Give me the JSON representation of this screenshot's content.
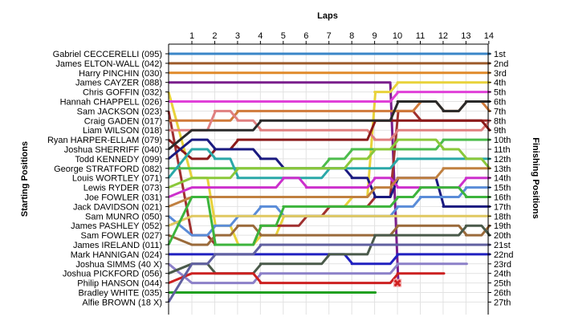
{
  "chart_data": {
    "type": "line",
    "title": "",
    "xlabel": "Laps",
    "ylabel_left": "Starting Positions",
    "ylabel_right": "Finishing Positions",
    "laps": [
      1,
      2,
      3,
      4,
      5,
      6,
      7,
      8,
      9,
      10,
      11,
      12,
      13,
      14
    ],
    "finish_labels": [
      "1st",
      "2nd",
      "3rd",
      "4th",
      "5th",
      "6th",
      "7th",
      "8th",
      "9th",
      "10th",
      "11th",
      "12th",
      "13th",
      "14th",
      "15th",
      "16th",
      "17th",
      "18th",
      "19th",
      "20th",
      "21st",
      "22nd",
      "23rd",
      "24th",
      "25th",
      "26th",
      "27th"
    ],
    "series": [
      {
        "name": "Gabriel CECCERELLI (095)",
        "color": "#3a86c8",
        "positions": [
          1,
          1,
          1,
          1,
          1,
          1,
          1,
          1,
          1,
          1,
          1,
          1,
          1,
          1
        ]
      },
      {
        "name": "James ELTON-WALL (042)",
        "color": "#9c5a2a",
        "positions": [
          2,
          2,
          2,
          2,
          2,
          2,
          2,
          2,
          2,
          2,
          2,
          2,
          2,
          2
        ]
      },
      {
        "name": "Harry PINCHIN (030)",
        "color": "#e08a2a",
        "positions": [
          3,
          3,
          3,
          3,
          3,
          3,
          3,
          3,
          3,
          3,
          3,
          3,
          3,
          3
        ]
      },
      {
        "name": "James CAYZER (088)",
        "color": "#7a1e8c",
        "positions": [
          4,
          4,
          4,
          4,
          4,
          4,
          4,
          4,
          4,
          25
        ]
      },
      {
        "name": "Chris GOFFIN (032)",
        "color": "#e8d23a",
        "positions": [
          14,
          19,
          21,
          20,
          18,
          18,
          17,
          16,
          5,
          4,
          4,
          4,
          4,
          4
        ]
      },
      {
        "name": "Hannah CHAPPELL (026)",
        "color": "#e040d8",
        "positions": [
          6,
          6,
          6,
          6,
          6,
          6,
          6,
          6,
          6,
          5,
          5,
          5,
          5,
          5
        ]
      },
      {
        "name": "Sam JACKSON (023)",
        "color": "#a03030",
        "positions": [
          20,
          21,
          21,
          19,
          19,
          18,
          17,
          17,
          16,
          7,
          8,
          8,
          8,
          8
        ]
      },
      {
        "name": "Craig GADEN (017)",
        "color": "#d07a3a",
        "positions": [
          8,
          8,
          7,
          7,
          7,
          7,
          7,
          7,
          7,
          7,
          6,
          7,
          6,
          7
        ]
      },
      {
        "name": "Liam WILSON (018)",
        "color": "#e08080",
        "positions": [
          9,
          7,
          8,
          9,
          9,
          9,
          9,
          9,
          10,
          9,
          9,
          9,
          9,
          8
        ]
      },
      {
        "name": "Ryan HARPER-ELLAM (079)",
        "color": "#8b1a1a",
        "positions": [
          12,
          11,
          10,
          10,
          10,
          10,
          10,
          10,
          8,
          8,
          8,
          8,
          8,
          9
        ]
      },
      {
        "name": "Joshua SHERRIFF (040)",
        "color": "#2a2a2a",
        "positions": [
          9,
          9,
          9,
          8,
          8,
          8,
          8,
          8,
          8,
          6,
          6,
          7,
          6,
          6
        ]
      },
      {
        "name": "Todd KENNEDY (099)",
        "color": "#1a1a80",
        "positions": [
          10,
          11,
          11,
          12,
          13,
          13,
          13,
          14,
          16,
          14,
          14,
          17,
          17,
          17
        ]
      },
      {
        "name": "George STRATFORD (082)",
        "color": "#4cbc4c",
        "positions": [
          13,
          13,
          13,
          13,
          13,
          13,
          12,
          11,
          11,
          11,
          11,
          10,
          10,
          10
        ]
      },
      {
        "name": "Louis WORTLEY (071)",
        "color": "#2aa8a8",
        "positions": [
          11,
          12,
          14,
          14,
          14,
          14,
          13,
          13,
          13,
          12,
          12,
          12,
          12,
          12
        ]
      },
      {
        "name": "Lewis RYDER (073)",
        "color": "#8ac83a",
        "positions": [
          14,
          14,
          13,
          13,
          13,
          13,
          13,
          12,
          11,
          10,
          10,
          11,
          12,
          13
        ]
      },
      {
        "name": "Joe FOWLER (031)",
        "color": "#cc30cc",
        "positions": [
          15,
          15,
          15,
          15,
          14,
          15,
          15,
          15,
          14,
          15,
          15,
          15,
          14,
          14
        ]
      },
      {
        "name": "Jack DAVIDSON (021)",
        "color": "#c08040",
        "positions": [
          16,
          16,
          16,
          16,
          16,
          16,
          16,
          16,
          15,
          14,
          14,
          13,
          13,
          13
        ]
      },
      {
        "name": "Sam MUNRO (050)",
        "color": "#5a8cd8",
        "positions": [
          20,
          19,
          18,
          17,
          18,
          18,
          18,
          18,
          18,
          17,
          16,
          16,
          15,
          15
        ]
      },
      {
        "name": "James PASHLEY (052)",
        "color": "#e0c860",
        "positions": [
          18,
          18,
          18,
          18,
          18,
          18,
          18,
          18,
          18,
          18,
          18,
          18,
          18,
          18
        ]
      },
      {
        "name": "Sam FOWLER (027)",
        "color": "#9a6a3a",
        "positions": [
          21,
          20,
          19,
          20,
          20,
          20,
          20,
          20,
          20,
          19,
          19,
          19,
          20,
          19
        ]
      },
      {
        "name": "James IRELAND (011)",
        "color": "#3cb43c",
        "positions": [
          16,
          21,
          21,
          19,
          17,
          17,
          17,
          17,
          17,
          16,
          15,
          15,
          16,
          16
        ]
      },
      {
        "name": "Mark HANNIGAN (024)",
        "color": "#2020c0",
        "positions": [
          22,
          22,
          22,
          22,
          22,
          22,
          22,
          23,
          23,
          22,
          22,
          22,
          22,
          22
        ]
      },
      {
        "name": "Joshua SIMMS (40 X)",
        "color": "#8c80c8",
        "positions": [
          25,
          25,
          25,
          24,
          24,
          24,
          24,
          24,
          24,
          23,
          23,
          23,
          23
        ]
      },
      {
        "name": "Joshua PICKFORD (056)",
        "color": "#4a5a4a",
        "positions": [
          23,
          24,
          24,
          23,
          23,
          23,
          22,
          22,
          20,
          20,
          20,
          20,
          19,
          20
        ]
      },
      {
        "name": "Philip HANSON (044)",
        "color": "#cc2020",
        "positions": [
          24,
          24,
          24,
          25,
          25,
          25,
          25,
          25,
          25,
          24,
          24,
          24
        ]
      },
      {
        "name": "Bradley WHITE (035)",
        "color": "#20a020",
        "positions": [
          26,
          26,
          26,
          26,
          26,
          26,
          26,
          26,
          26
        ]
      },
      {
        "name": "Alfie BROWN (18 X)",
        "color": "#6060a0",
        "positions": [
          23,
          22,
          22,
          21,
          21,
          21,
          21,
          21,
          21,
          21,
          21,
          21,
          21,
          21
        ]
      }
    ],
    "retired_marker": {
      "lap": 10,
      "position": 25,
      "symbol": "✖",
      "color": "#d02020"
    }
  }
}
